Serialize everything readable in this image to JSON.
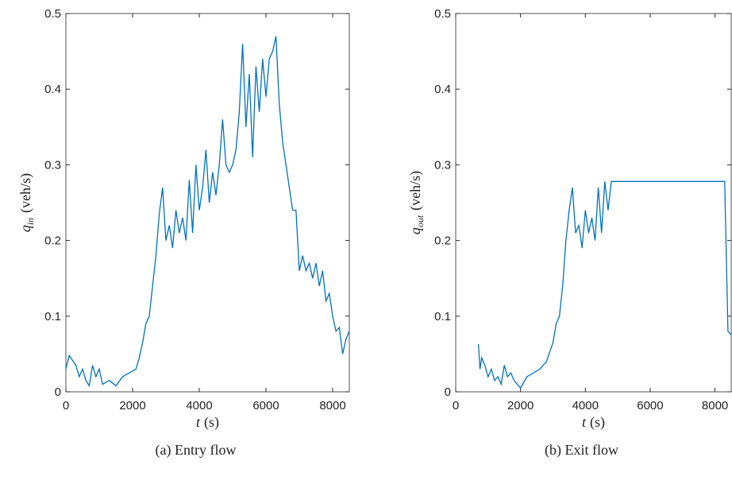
{
  "chart_data": [
    {
      "type": "line",
      "caption": "(a) Entry flow",
      "x_label_symbol": "t",
      "x_label_unit": "(s)",
      "y_label_symbol": "q",
      "y_label_subscript": "in",
      "y_label_unit": "(veh/s)",
      "color": "#0072bd",
      "xlim": [
        0,
        8500
      ],
      "xticks": [
        0,
        2000,
        4000,
        6000,
        8000
      ],
      "ylim": [
        0,
        0.5
      ],
      "yticks": [
        0,
        0.1,
        0.2,
        0.3,
        0.4,
        0.5
      ],
      "x": [
        0,
        100,
        300,
        400,
        500,
        600,
        700,
        800,
        900,
        1000,
        1100,
        1300,
        1500,
        1700,
        1900,
        2100,
        2200,
        2300,
        2400,
        2500,
        2600,
        2700,
        2800,
        2900,
        3000,
        3100,
        3200,
        3300,
        3400,
        3500,
        3600,
        3700,
        3800,
        3900,
        4000,
        4100,
        4200,
        4300,
        4400,
        4500,
        4600,
        4700,
        4800,
        4900,
        5000,
        5100,
        5200,
        5300,
        5400,
        5500,
        5600,
        5700,
        5800,
        5900,
        6000,
        6100,
        6200,
        6300,
        6400,
        6500,
        6600,
        6700,
        6800,
        6900,
        7000,
        7100,
        7200,
        7300,
        7400,
        7500,
        7600,
        7700,
        7800,
        7900,
        8000,
        8100,
        8200,
        8300,
        8400,
        8500
      ],
      "values": [
        0.03,
        0.048,
        0.035,
        0.02,
        0.03,
        0.015,
        0.008,
        0.035,
        0.02,
        0.03,
        0.01,
        0.015,
        0.008,
        0.02,
        0.025,
        0.03,
        0.045,
        0.065,
        0.09,
        0.1,
        0.14,
        0.18,
        0.235,
        0.27,
        0.2,
        0.22,
        0.19,
        0.24,
        0.21,
        0.23,
        0.2,
        0.28,
        0.21,
        0.3,
        0.24,
        0.27,
        0.32,
        0.25,
        0.29,
        0.26,
        0.3,
        0.36,
        0.3,
        0.29,
        0.3,
        0.32,
        0.37,
        0.46,
        0.35,
        0.42,
        0.31,
        0.43,
        0.37,
        0.44,
        0.39,
        0.44,
        0.45,
        0.47,
        0.38,
        0.33,
        0.3,
        0.27,
        0.24,
        0.24,
        0.16,
        0.18,
        0.16,
        0.17,
        0.15,
        0.17,
        0.14,
        0.16,
        0.12,
        0.13,
        0.1,
        0.08,
        0.085,
        0.05,
        0.07,
        0.08
      ]
    },
    {
      "type": "line",
      "caption": "(b) Exit flow",
      "x_label_symbol": "t",
      "x_label_unit": "(s)",
      "y_label_symbol": "q",
      "y_label_subscript": "out",
      "y_label_unit": "(veh/s)",
      "color": "#0072bd",
      "xlim": [
        0,
        8500
      ],
      "xticks": [
        0,
        2000,
        4000,
        6000,
        8000
      ],
      "ylim": [
        0,
        0.5
      ],
      "yticks": [
        0,
        0.1,
        0.2,
        0.3,
        0.4,
        0.5
      ],
      "x": [
        700,
        750,
        800,
        900,
        1000,
        1100,
        1200,
        1300,
        1400,
        1500,
        1600,
        1700,
        1800,
        2000,
        2200,
        2400,
        2600,
        2800,
        3000,
        3100,
        3200,
        3300,
        3400,
        3500,
        3600,
        3700,
        3800,
        3900,
        4000,
        4100,
        4200,
        4300,
        4400,
        4500,
        4600,
        4700,
        4800,
        5000,
        8300,
        8400,
        8500
      ],
      "values": [
        0.063,
        0.03,
        0.045,
        0.035,
        0.02,
        0.03,
        0.015,
        0.02,
        0.01,
        0.035,
        0.02,
        0.025,
        0.015,
        0.005,
        0.02,
        0.025,
        0.03,
        0.04,
        0.065,
        0.09,
        0.1,
        0.14,
        0.2,
        0.24,
        0.27,
        0.21,
        0.22,
        0.19,
        0.24,
        0.21,
        0.23,
        0.2,
        0.27,
        0.21,
        0.278,
        0.24,
        0.278,
        0.278,
        0.278,
        0.08,
        0.075
      ]
    }
  ]
}
